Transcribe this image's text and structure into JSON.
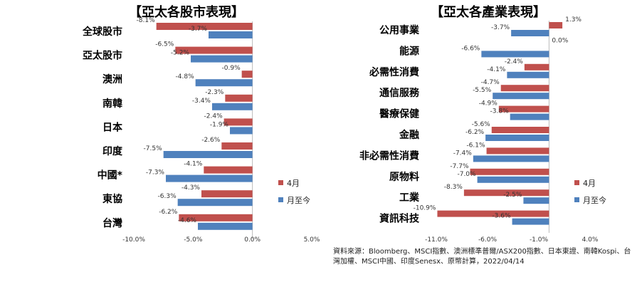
{
  "colors": {
    "april": "#c0504d",
    "ytd": "#4f81bd"
  },
  "source_note": "資料來源：Bloomberg、MSCI指數、澳洲標準普爾/ASX200指數、日本東證、南韓Kospi、台灣加權、MSCI中國、印度Senesx、原幣計算，2022/04/14",
  "chart_data": [
    {
      "type": "bar",
      "orientation": "horizontal",
      "title": "【亞太各股市表現】",
      "categories": [
        "全球股市",
        "亞太股市",
        "澳洲",
        "南韓",
        "日本",
        "印度",
        "中國*",
        "東協",
        "台灣"
      ],
      "series": [
        {
          "name": "4月",
          "values": [
            -8.1,
            -6.5,
            -0.9,
            -2.3,
            -2.4,
            -2.6,
            -4.1,
            -4.3,
            -6.2
          ],
          "labels": [
            "-8.1%",
            "-6.5%",
            "-0.9%",
            "-2.3%",
            "-2.4%",
            "-2.6%",
            "-4.1%",
            "-4.3%",
            "-6.2%"
          ]
        },
        {
          "name": "月至今",
          "values": [
            -3.7,
            -5.2,
            -4.8,
            -3.4,
            -1.9,
            -7.5,
            -7.3,
            -6.3,
            -4.6
          ],
          "labels": [
            "-3.7%",
            "-5.2%",
            "-4.8%",
            "-3.4%",
            "-1.9%",
            "-7.5%",
            "-7.3%",
            "-6.3%",
            "-4.6%"
          ]
        }
      ],
      "xlim": [
        -10,
        5
      ],
      "xticks": [
        -10,
        -5,
        0,
        5
      ],
      "xtick_labels": [
        "-10.0%",
        "-5.0%",
        "0.0%",
        "5.0%"
      ],
      "legend": [
        "4月",
        "月至今"
      ],
      "legend_position": "right"
    },
    {
      "type": "bar",
      "orientation": "horizontal",
      "title": "【亞太各產業表現】",
      "categories": [
        "公用事業",
        "能源",
        "必需性消費",
        "通信服務",
        "醫療保健",
        "金融",
        "非必需性消費",
        "原物料",
        "工業",
        "資訊科技"
      ],
      "series": [
        {
          "name": "4月",
          "values": [
            1.3,
            0.0,
            -2.4,
            -4.7,
            -4.9,
            -5.6,
            -6.1,
            -7.7,
            -8.3,
            -10.9
          ],
          "labels": [
            "1.3%",
            "0.0%",
            "-2.4%",
            "-4.7%",
            "-4.9%",
            "-5.6%",
            "-6.1%",
            "-7.7%",
            "-8.3%",
            "-10.9%"
          ]
        },
        {
          "name": "月至今",
          "values": [
            -3.7,
            -6.6,
            -4.1,
            -5.5,
            -3.8,
            -6.2,
            -7.4,
            -7.0,
            -2.5,
            -3.6
          ],
          "labels": [
            "-3.7%",
            "-6.6%",
            "-4.1%",
            "-5.5%",
            "-3.8%",
            "-6.2%",
            "-7.4%",
            "-7.0%",
            "-2.5%",
            "-3.6%"
          ]
        }
      ],
      "xlim": [
        -11,
        4
      ],
      "xticks": [
        -11,
        -6,
        -1,
        4
      ],
      "xtick_labels": [
        "-11.0%",
        "-6.0%",
        "-1.0%",
        "4.0%"
      ],
      "legend": [
        "4月",
        "月至今"
      ],
      "legend_position": "right"
    }
  ]
}
